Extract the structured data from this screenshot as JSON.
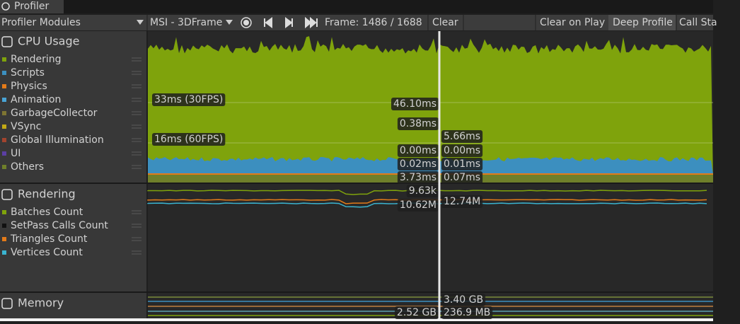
{
  "tab": "Profiler",
  "toolbar": {
    "modules": "Profiler Modules",
    "target": "MSI - 3DFrame",
    "frame": "Frame: 1486 / 1688",
    "clear": "Clear",
    "clear_on_play": "Clear on Play",
    "deep_profile": "Deep Profile",
    "call_stacks": "Call Sta"
  },
  "modules": [
    {
      "title": "CPU Usage",
      "items": [
        {
          "name": "Rendering",
          "color": "#7fa30c"
        },
        {
          "name": "Scripts",
          "color": "#3c8fbf"
        },
        {
          "name": "Physics",
          "color": "#e47b19"
        },
        {
          "name": "Animation",
          "color": "#49a4d5"
        },
        {
          "name": "GarbageCollector",
          "color": "#7e7532"
        },
        {
          "name": "VSync",
          "color": "#c2a916"
        },
        {
          "name": "Global Illumination",
          "color": "#a2442e"
        },
        {
          "name": "UI",
          "color": "#5b3fa3"
        },
        {
          "name": "Others",
          "color": "#6f7f2a"
        }
      ]
    },
    {
      "title": "Rendering",
      "items": [
        {
          "name": "Batches Count",
          "color": "#7fa30c"
        },
        {
          "name": "SetPass Calls Count",
          "color": "#111111"
        },
        {
          "name": "Triangles Count",
          "color": "#e47b19"
        },
        {
          "name": "Vertices Count",
          "color": "#3ab4d0"
        }
      ]
    },
    {
      "title": "Memory",
      "items": []
    }
  ],
  "cpu_chart": {
    "markers": [
      "33ms (30FPS)",
      "16ms (60FPS)"
    ],
    "labels": [
      "46.10ms",
      "0.38ms",
      "5.66ms",
      "0.00ms",
      "0.00ms",
      "0.02ms",
      "0.01ms",
      "3.73ms",
      "0.07ms"
    ]
  },
  "rendering_chart": {
    "labels": [
      "9.63k",
      "10.62M",
      "12.74M"
    ]
  },
  "memory_chart": {
    "labels": [
      "3.40 GB",
      "2.52 GB",
      "236.9 MB"
    ]
  }
}
